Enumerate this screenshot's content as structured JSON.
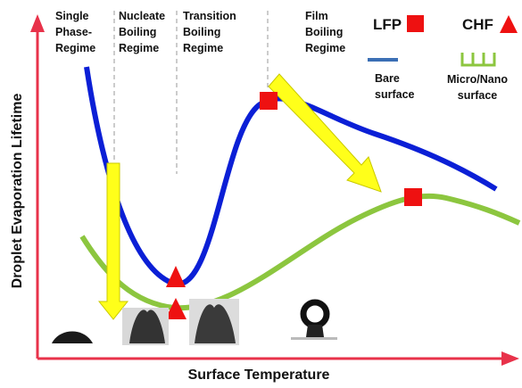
{
  "regimes": [
    {
      "lines": [
        "Single",
        "Phase-",
        "Regime"
      ]
    },
    {
      "lines": [
        "Nucleate",
        "Boiling",
        "Regime"
      ]
    },
    {
      "lines": [
        "Transition",
        "Boiling",
        "Regime"
      ]
    },
    {
      "lines": [
        "Film",
        "Boiling",
        "Regime"
      ]
    }
  ],
  "legend": {
    "lfp": "LFP",
    "chf": "CHF",
    "bare": [
      "Bare",
      "surface"
    ],
    "nano": [
      "Micro/Nano",
      "surface"
    ]
  },
  "axes": {
    "y_label": "Droplet Evaporation Lifetime",
    "x_label": "Surface Temperature"
  }
}
